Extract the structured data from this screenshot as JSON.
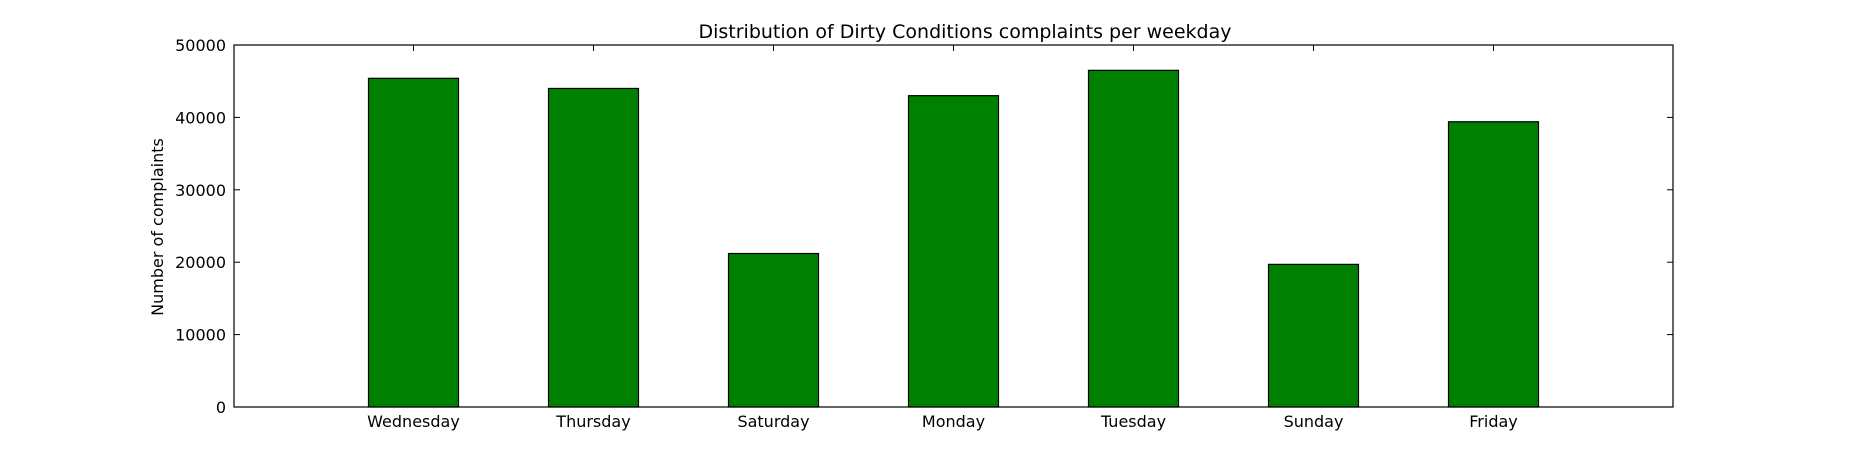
{
  "chart_data": {
    "type": "bar",
    "title": "Distribution of  Dirty Conditions complaints per weekday",
    "xlabel": "",
    "ylabel": "Number of complaints",
    "categories": [
      "Wednesday",
      "Thursday",
      "Saturday",
      "Monday",
      "Tuesday",
      "Sunday",
      "Friday"
    ],
    "values": [
      45400,
      44000,
      21200,
      43000,
      46500,
      19700,
      39400
    ],
    "ylim": [
      0,
      50000
    ],
    "yticks": [
      0,
      10000,
      20000,
      30000,
      40000,
      50000
    ],
    "ytick_labels": [
      "0",
      "10000",
      "20000",
      "30000",
      "40000",
      "50000"
    ],
    "bar_color": "#008000",
    "edge_color": "#000000",
    "grid": false,
    "legend": "none"
  }
}
